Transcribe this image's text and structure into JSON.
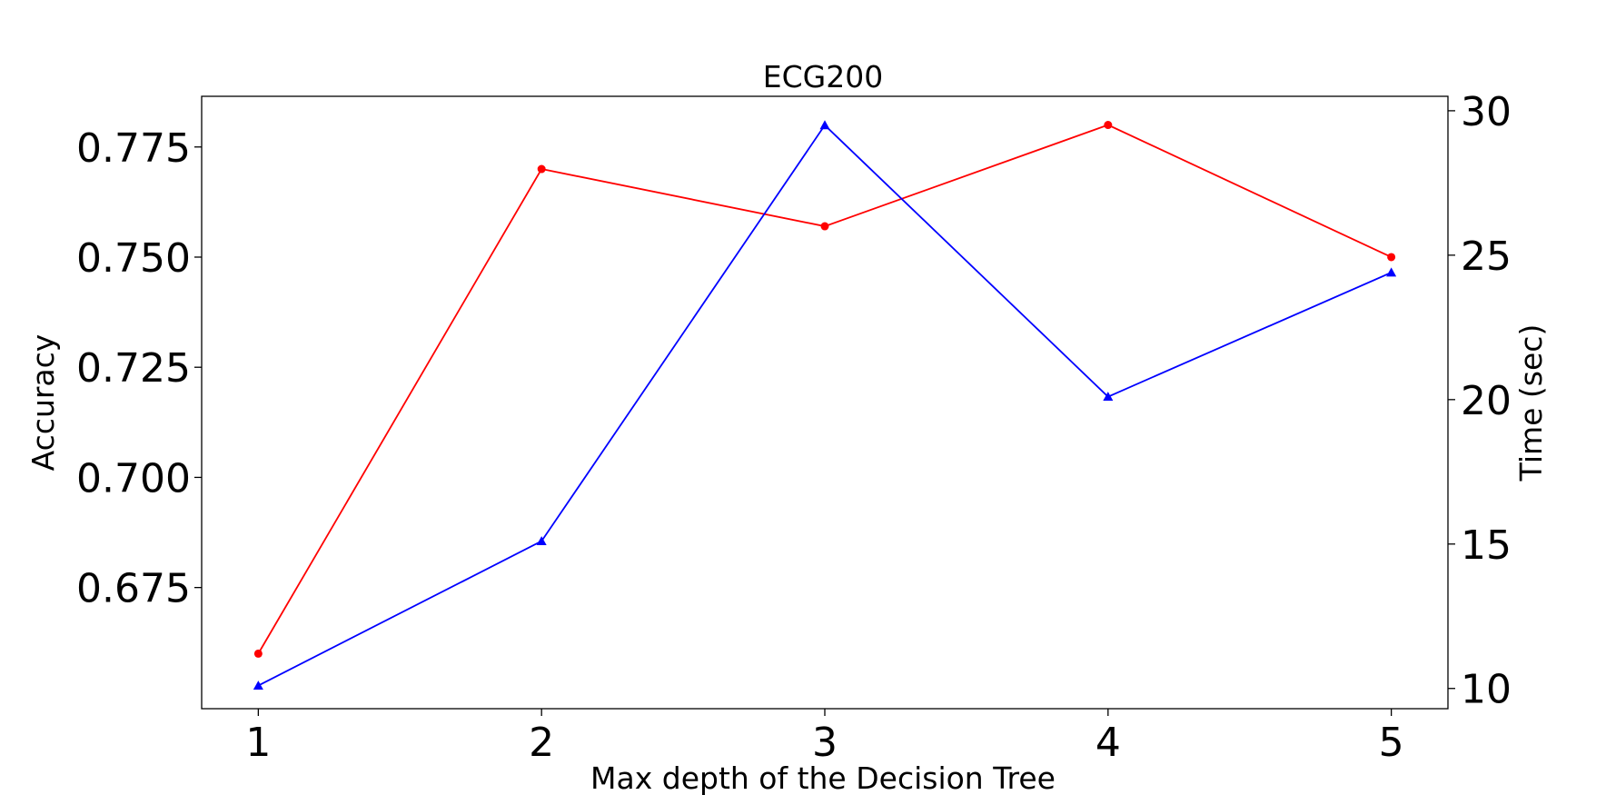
{
  "chart_data": {
    "type": "line",
    "title": "ECG200",
    "xlabel": "Max depth of the Decision Tree",
    "ylabel": "Accuracy",
    "ylabel_right": "Time (sec)",
    "x": [
      1,
      2,
      3,
      4,
      5
    ],
    "x_ticks": [
      "1",
      "2",
      "3",
      "4",
      "5"
    ],
    "y_ticks": [
      "0.675",
      "0.700",
      "0.725",
      "0.750",
      "0.775"
    ],
    "y_right_ticks": [
      "10",
      "15",
      "20",
      "25",
      "30"
    ],
    "ylim": [
      0.6475,
      0.7865
    ],
    "ylim_right": [
      9.3,
      30.5
    ],
    "grid": false,
    "series": [
      {
        "axis": "left",
        "color": "#ff0000",
        "marker": "circle",
        "values": [
          0.66,
          0.77,
          0.757,
          0.78,
          0.75
        ]
      },
      {
        "axis": "right",
        "color": "#0000ff",
        "marker": "triangle",
        "values": [
          10.1,
          15.1,
          29.5,
          20.1,
          24.4
        ]
      }
    ]
  }
}
